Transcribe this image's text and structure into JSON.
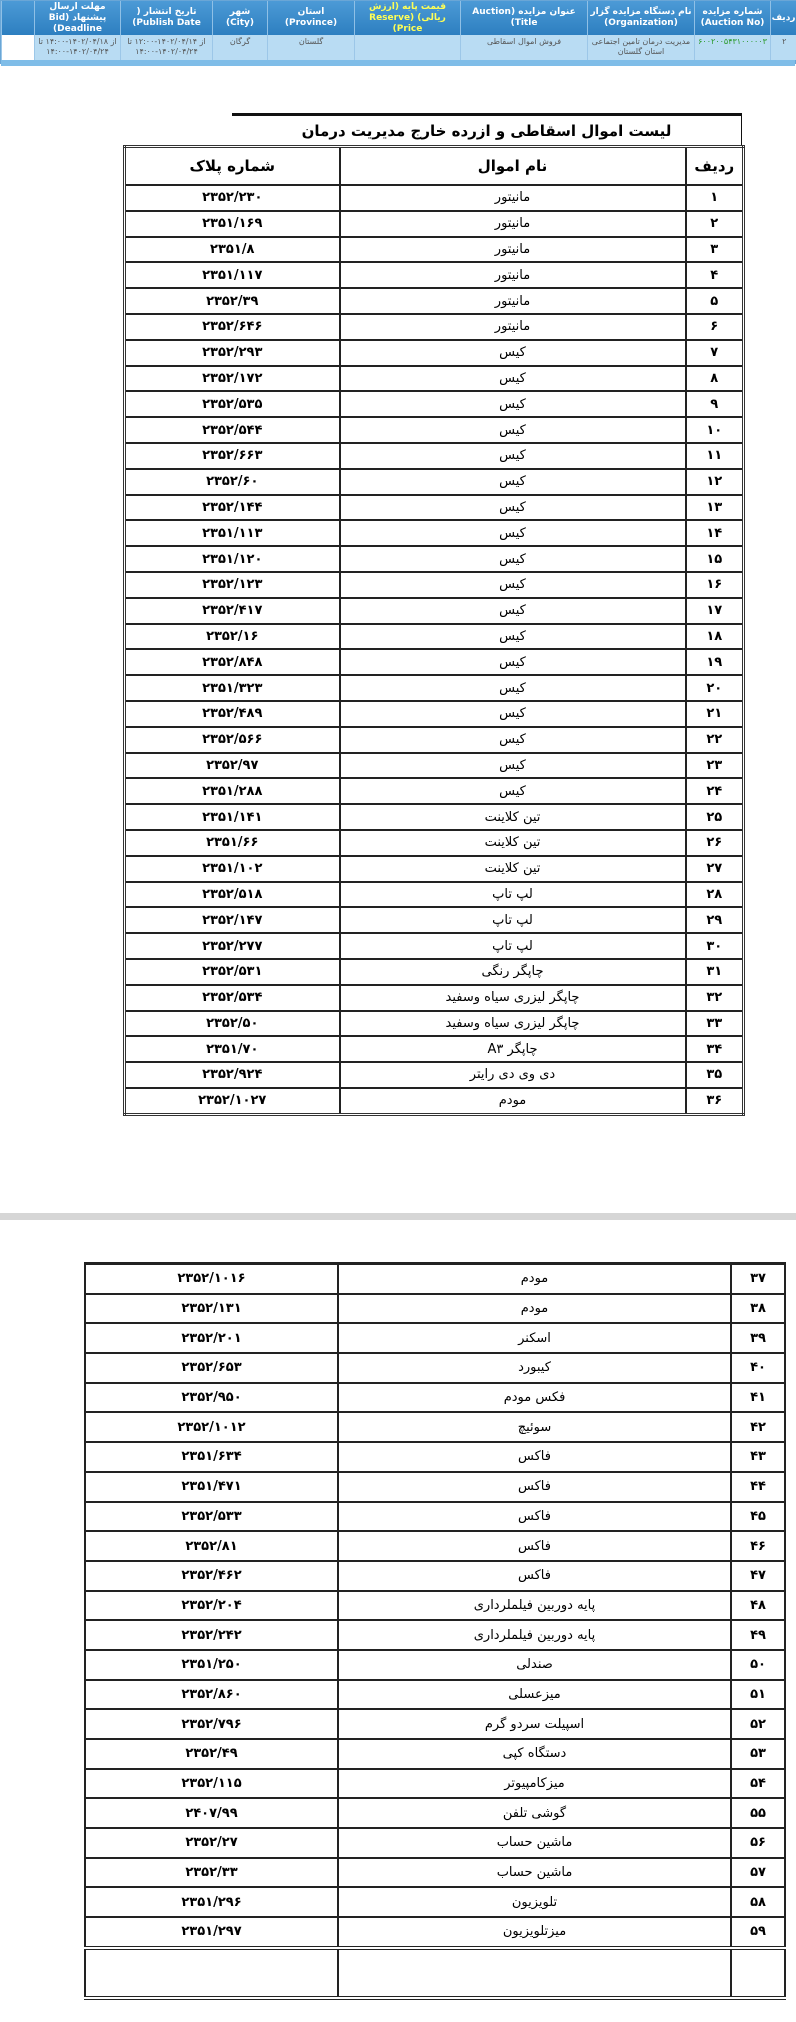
{
  "auction_header": {
    "columns": [
      "ردیف",
      "شماره مزایده (Auction No)",
      "نام دستگاه مزایده گزار (Organization)",
      "عنوان مزایده (Auction Title)",
      "قیمت پایه (ارزش ریالی) (Reserve Price)",
      "استان (Province)",
      "شهر (City)",
      "تاریخ انتشار ( Publish Date)",
      "مهلت ارسال پیشنهاد (Bid Deadline)"
    ],
    "row": {
      "radif": "۲",
      "auction_no": "۶۰۰۲۰۰۵۴۳۱۰۰۰۰۰۳",
      "organization": "مدیریت درمان تامین اجتماعی استان گلستان",
      "title": "فروش اموال اسقاطی",
      "reserve_price": "",
      "province": "گلستان",
      "city": "گرگان",
      "publish_date": "از ۱۴۰۲/۰۴/۱۴-۱۲:۰۰ تا ۱۴۰۲/۰۴/۲۴-۱۴:۰۰",
      "bid_deadline": "از ۱۴۰۲/۰۴/۱۸-۱۴:۰۰ تا ۱۴۰۲/۰۴/۲۴-۱۴:۰۰"
    },
    "colors": {
      "header_bg": "#2d7fc0",
      "row_bg": "#b9dcf3",
      "highlight": "#ffff55",
      "auction_no": "#2a9a2a"
    }
  },
  "list": {
    "title": "لیست اموال اسقاطی و ازرده خارج  مدیریت درمان",
    "headers": {
      "radif": "ردیف",
      "name": "نام اموال",
      "plaque": "شماره پلاک"
    },
    "page1": [
      [
        "۱",
        "مانیتور",
        "۲۳۵۲/۲۳۰"
      ],
      [
        "۲",
        "مانیتور",
        "۲۳۵۱/۱۶۹"
      ],
      [
        "۳",
        "مانیتور",
        "۲۳۵۱/۸"
      ],
      [
        "۴",
        "مانیتور",
        "۲۳۵۱/۱۱۷"
      ],
      [
        "۵",
        "مانیتور",
        "۲۳۵۲/۳۹"
      ],
      [
        "۶",
        "مانیتور",
        "۲۳۵۲/۶۴۶"
      ],
      [
        "۷",
        "کیس",
        "۲۳۵۲/۲۹۳"
      ],
      [
        "۸",
        "کیس",
        "۲۳۵۲/۱۷۲"
      ],
      [
        "۹",
        "کیس",
        "۲۳۵۲/۵۳۵"
      ],
      [
        "۱۰",
        "کیس",
        "۲۳۵۲/۵۴۴"
      ],
      [
        "۱۱",
        "کیس",
        "۲۳۵۲/۶۶۳"
      ],
      [
        "۱۲",
        "کیس",
        "۲۳۵۲/۶۰"
      ],
      [
        "۱۳",
        "کیس",
        "۲۳۵۲/۱۴۴"
      ],
      [
        "۱۴",
        "کیس",
        "۲۳۵۱/۱۱۳"
      ],
      [
        "۱۵",
        "کیس",
        "۲۳۵۱/۱۲۰"
      ],
      [
        "۱۶",
        "کیس",
        "۲۳۵۲/۱۲۳"
      ],
      [
        "۱۷",
        "کیس",
        "۲۳۵۲/۴۱۷"
      ],
      [
        "۱۸",
        "کیس",
        "۲۳۵۲/۱۶"
      ],
      [
        "۱۹",
        "کیس",
        "۲۳۵۲/۸۴۸"
      ],
      [
        "۲۰",
        "کیس",
        "۲۳۵۱/۳۲۳"
      ],
      [
        "۲۱",
        "کیس",
        "۲۳۵۲/۴۸۹"
      ],
      [
        "۲۲",
        "کیس",
        "۲۳۵۲/۵۶۶"
      ],
      [
        "۲۳",
        "کیس",
        "۲۳۵۲/۹۷"
      ],
      [
        "۲۴",
        "کیس",
        "۲۳۵۱/۲۸۸"
      ],
      [
        "۲۵",
        "تین کلاینت",
        "۲۳۵۱/۱۴۱"
      ],
      [
        "۲۶",
        "تین کلاینت",
        "۲۳۵۱/۶۶"
      ],
      [
        "۲۷",
        "تین کلاینت",
        "۲۳۵۱/۱۰۲"
      ],
      [
        "۲۸",
        "لپ تاپ",
        "۲۳۵۲/۵۱۸"
      ],
      [
        "۲۹",
        "لپ تاپ",
        "۲۳۵۲/۱۴۷"
      ],
      [
        "۳۰",
        "لپ تاپ",
        "۲۳۵۲/۲۷۷"
      ],
      [
        "۳۱",
        "چاپگر رنگی",
        "۲۳۵۲/۵۳۱"
      ],
      [
        "۳۲",
        "چاپگر لیزری سیاه وسفید",
        "۲۳۵۲/۵۳۴"
      ],
      [
        "۳۳",
        "چاپگر لیزری سیاه وسفید",
        "۲۳۵۲/۵۰"
      ],
      [
        "۳۴",
        "چاپگر A۳",
        "۲۳۵۱/۷۰"
      ],
      [
        "۳۵",
        "دی وی دی رایتر",
        "۲۳۵۲/۹۲۴"
      ],
      [
        "۳۶",
        "مودم",
        "۲۳۵۲/۱۰۲۷"
      ]
    ],
    "page2": [
      [
        "۳۷",
        "مودم",
        "۲۳۵۲/۱۰۱۶"
      ],
      [
        "۳۸",
        "مودم",
        "۲۳۵۲/۱۳۱"
      ],
      [
        "۳۹",
        "اسکنر",
        "۲۳۵۲/۲۰۱"
      ],
      [
        "۴۰",
        "کیبورد",
        "۲۳۵۲/۶۵۳"
      ],
      [
        "۴۱",
        "فکس مودم",
        "۲۳۵۲/۹۵۰"
      ],
      [
        "۴۲",
        "سوئیچ",
        "۲۳۵۲/۱۰۱۲"
      ],
      [
        "۴۳",
        "فاکس",
        "۲۳۵۱/۶۳۴"
      ],
      [
        "۴۴",
        "فاکس",
        "۲۳۵۱/۴۷۱"
      ],
      [
        "۴۵",
        "فاکس",
        "۲۳۵۲/۵۳۳"
      ],
      [
        "۴۶",
        "فاکس",
        "۲۳۵۲/۸۱"
      ],
      [
        "۴۷",
        "فاکس",
        "۲۳۵۲/۴۶۲"
      ],
      [
        "۴۸",
        "پایه دوربین فیلملرداری",
        "۲۳۵۲/۲۰۴"
      ],
      [
        "۴۹",
        "پایه دوربین فیلملرداری",
        "۲۳۵۲/۲۴۲"
      ],
      [
        "۵۰",
        "صندلی",
        "۲۳۵۱/۲۵۰"
      ],
      [
        "۵۱",
        "میزعسلی",
        "۲۳۵۲/۸۶۰"
      ],
      [
        "۵۲",
        "اسپیلت سردو گرم",
        "۲۳۵۲/۷۹۶"
      ],
      [
        "۵۳",
        "دستگاه کپی",
        "۲۳۵۲/۴۹"
      ],
      [
        "۵۴",
        "میزکامپیوتر",
        "۲۳۵۲/۱۱۵"
      ],
      [
        "۵۵",
        "گوشی تلفن",
        "۲۴۰۷/۹۹"
      ],
      [
        "۵۶",
        "ماشین حساب",
        "۲۳۵۲/۲۷"
      ],
      [
        "۵۷",
        "ماشین حساب",
        "۲۳۵۲/۳۳"
      ],
      [
        "۵۸",
        "تلویزیون",
        "۲۳۵۱/۲۹۶"
      ],
      [
        "۵۹",
        "میزتلویزیون",
        "۲۳۵۱/۲۹۷"
      ]
    ]
  }
}
